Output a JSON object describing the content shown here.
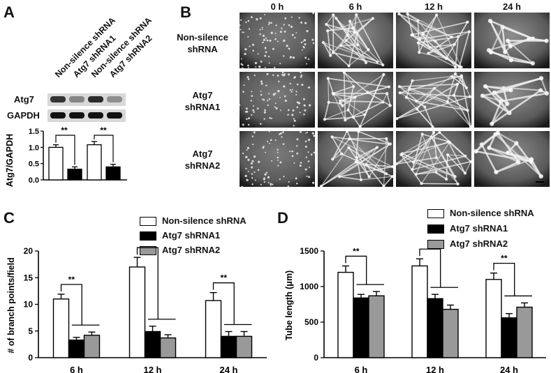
{
  "panelA": {
    "letter": "A",
    "lane_labels": [
      "Non-silence shRNA",
      "Atg7 shRNA1",
      "Non-silence shRNA",
      "Atg7 shRNA2"
    ],
    "blot_rows": [
      {
        "label": "Atg7",
        "band_intensity": [
          0.9,
          0.45,
          0.95,
          0.4
        ]
      },
      {
        "label": "GAPDH",
        "band_intensity": [
          0.95,
          0.95,
          0.95,
          0.95
        ]
      }
    ],
    "significance": [
      "**",
      "**"
    ],
    "chart_data": {
      "type": "bar",
      "ylabel": "Atg7/GAPDH",
      "ylim": [
        0,
        1.5
      ],
      "yticks": [
        "0.0",
        "0.5",
        "1.0",
        "1.5"
      ],
      "categories": [
        "Non-silence shRNA",
        "Atg7 shRNA1",
        "Non-silence shRNA",
        "Atg7 shRNA2"
      ],
      "values": [
        1.0,
        0.33,
        1.08,
        0.4
      ],
      "errors": [
        0.08,
        0.07,
        0.1,
        0.08
      ],
      "colors": [
        "#ffffff",
        "#000000",
        "#ffffff",
        "#000000"
      ]
    }
  },
  "panelB": {
    "letter": "B",
    "time_labels": [
      "0 h",
      "6 h",
      "12 h",
      "24 h"
    ],
    "row_labels": [
      [
        "Non-silence",
        "shRNA"
      ],
      [
        "Atg7",
        "shRNA1"
      ],
      [
        "Atg7",
        "shRNA2"
      ]
    ]
  },
  "panelC": {
    "letter": "C",
    "legend": [
      "Non-silence shRNA",
      "Atg7 shRNA1",
      "Atg7 shRNA2"
    ],
    "significance": [
      "**",
      "**",
      "**"
    ],
    "chart_data": {
      "type": "bar",
      "ylabel": "# of branch points/field",
      "ylim": [
        0,
        20
      ],
      "yticks": [
        "0",
        "5",
        "10",
        "15",
        "20"
      ],
      "categories": [
        "6 h",
        "12 h",
        "24 h"
      ],
      "series": [
        {
          "name": "Non-silence shRNA",
          "color": "#ffffff",
          "values": [
            11.0,
            17.0,
            10.7
          ],
          "errors": [
            0.9,
            1.8,
            1.5
          ]
        },
        {
          "name": "Atg7 shRNA1",
          "color": "#000000",
          "values": [
            3.3,
            4.9,
            4.0
          ],
          "errors": [
            0.5,
            1.0,
            0.9
          ]
        },
        {
          "name": "Atg7 shRNA2",
          "color": "#999999",
          "values": [
            4.2,
            3.7,
            4.0
          ],
          "errors": [
            0.6,
            0.6,
            0.9
          ]
        }
      ]
    }
  },
  "panelD": {
    "letter": "D",
    "legend": [
      "Non-silence shRNA",
      "Atg7 shRNA1",
      "Atg7 shRNA2"
    ],
    "significance": [
      "**",
      "**",
      "**"
    ],
    "chart_data": {
      "type": "bar",
      "ylabel": "Tube length (μm)",
      "ylim": [
        0,
        1500
      ],
      "yticks": [
        "0",
        "500",
        "1000",
        "1500"
      ],
      "categories": [
        "6 h",
        "12 h",
        "24 h"
      ],
      "series": [
        {
          "name": "Non-silence shRNA",
          "color": "#ffffff",
          "values": [
            1200,
            1290,
            1100
          ],
          "errors": [
            90,
            100,
            90
          ]
        },
        {
          "name": "Atg7 shRNA1",
          "color": "#000000",
          "values": [
            840,
            830,
            560
          ],
          "errors": [
            50,
            60,
            60
          ]
        },
        {
          "name": "Atg7 shRNA2",
          "color": "#999999",
          "values": [
            870,
            680,
            710
          ],
          "errors": [
            60,
            60,
            60
          ]
        }
      ]
    }
  }
}
